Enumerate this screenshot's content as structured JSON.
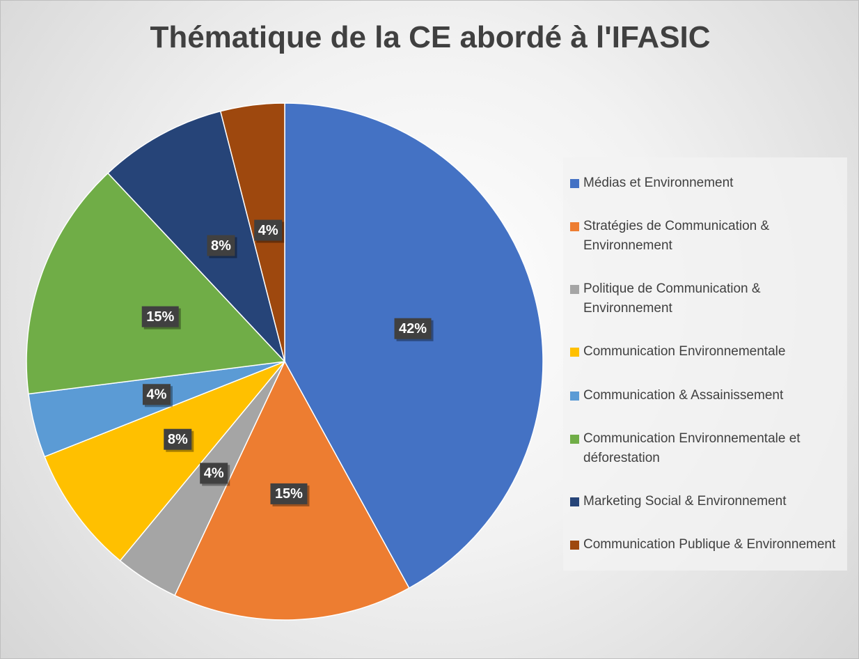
{
  "chart_data": {
    "type": "pie",
    "title": "Thématique de la CE abordé à l'IFASIC",
    "categories": [
      "Médias et Environnement",
      "Stratégies de Communication & Environnement",
      "Politique de Communication & Environnement",
      "Communication Environnementale",
      "Communication & Assainissement",
      "Communication Environnementale et déforestation",
      "Marketing Social & Environnement",
      "Communication Publique & Environnement"
    ],
    "values": [
      42,
      15,
      4,
      8,
      4,
      15,
      8,
      4
    ],
    "value_labels": [
      "42%",
      "15%",
      "4%",
      "8%",
      "4%",
      "15%",
      "8%",
      "4%"
    ],
    "colors": [
      "#4472c4",
      "#ed7d31",
      "#a5a5a5",
      "#ffc000",
      "#5b9bd5",
      "#70ad47",
      "#264478",
      "#9e480e"
    ],
    "legend": "right"
  }
}
